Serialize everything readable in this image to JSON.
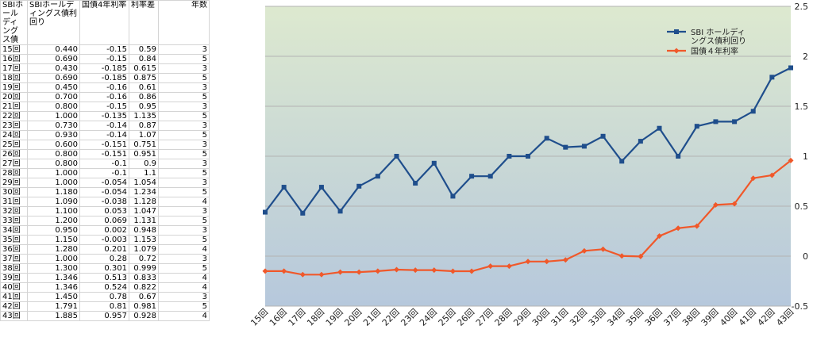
{
  "table": {
    "headers": [
      "SBIホールディングス債",
      "SBIホールディングス債利回り",
      "国債4年利率",
      "利率差",
      "年数"
    ],
    "rows": [
      [
        "15回",
        "0.440",
        "-0.15",
        "0.59",
        "3"
      ],
      [
        "16回",
        "0.690",
        "-0.15",
        "0.84",
        "5"
      ],
      [
        "17回",
        "0.430",
        "-0.185",
        "0.615",
        "3"
      ],
      [
        "18回",
        "0.690",
        "-0.185",
        "0.875",
        "5"
      ],
      [
        "19回",
        "0.450",
        "-0.16",
        "0.61",
        "3"
      ],
      [
        "20回",
        "0.700",
        "-0.16",
        "0.86",
        "5"
      ],
      [
        "21回",
        "0.800",
        "-0.15",
        "0.95",
        "3"
      ],
      [
        "22回",
        "1.000",
        "-0.135",
        "1.135",
        "5"
      ],
      [
        "23回",
        "0.730",
        "-0.14",
        "0.87",
        "3"
      ],
      [
        "24回",
        "0.930",
        "-0.14",
        "1.07",
        "5"
      ],
      [
        "25回",
        "0.600",
        "-0.151",
        "0.751",
        "3"
      ],
      [
        "26回",
        "0.800",
        "-0.151",
        "0.951",
        "5"
      ],
      [
        "27回",
        "0.800",
        "-0.1",
        "0.9",
        "3"
      ],
      [
        "28回",
        "1.000",
        "-0.1",
        "1.1",
        "5"
      ],
      [
        "29回",
        "1.000",
        "-0.054",
        "1.054",
        "3"
      ],
      [
        "30回",
        "1.180",
        "-0.054",
        "1.234",
        "5"
      ],
      [
        "31回",
        "1.090",
        "-0.038",
        "1.128",
        "4"
      ],
      [
        "32回",
        "1.100",
        "0.053",
        "1.047",
        "3"
      ],
      [
        "33回",
        "1.200",
        "0.069",
        "1.131",
        "5"
      ],
      [
        "34回",
        "0.950",
        "0.002",
        "0.948",
        "3"
      ],
      [
        "35回",
        "1.150",
        "-0.003",
        "1.153",
        "5"
      ],
      [
        "36回",
        "1.280",
        "0.201",
        "1.079",
        "4"
      ],
      [
        "37回",
        "1.000",
        "0.28",
        "0.72",
        "3"
      ],
      [
        "38回",
        "1.300",
        "0.301",
        "0.999",
        "5"
      ],
      [
        "39回",
        "1.346",
        "0.513",
        "0.833",
        "4"
      ],
      [
        "40回",
        "1.346",
        "0.524",
        "0.822",
        "4"
      ],
      [
        "41回",
        "1.450",
        "0.78",
        "0.67",
        "3"
      ],
      [
        "42回",
        "1.791",
        "0.81",
        "0.981",
        "5"
      ],
      [
        "43回",
        "1.885",
        "0.957",
        "0.928",
        "4"
      ]
    ]
  },
  "chart_data": {
    "type": "line",
    "categories": [
      "15回",
      "16回",
      "17回",
      "18回",
      "19回",
      "20回",
      "21回",
      "22回",
      "23回",
      "24回",
      "25回",
      "26回",
      "27回",
      "28回",
      "29回",
      "30回",
      "31回",
      "32回",
      "33回",
      "34回",
      "35回",
      "36回",
      "37回",
      "38回",
      "39回",
      "40回",
      "41回",
      "42回",
      "43回"
    ],
    "series": [
      {
        "name": "SBI ホールディングス債利回り",
        "color": "#1f4e8c",
        "marker": "square",
        "values": [
          0.44,
          0.69,
          0.43,
          0.69,
          0.45,
          0.7,
          0.8,
          1.0,
          0.73,
          0.93,
          0.6,
          0.8,
          0.8,
          1.0,
          1.0,
          1.18,
          1.09,
          1.1,
          1.2,
          0.95,
          1.15,
          1.28,
          1.0,
          1.3,
          1.346,
          1.346,
          1.45,
          1.791,
          1.885
        ]
      },
      {
        "name": "国債４年利率",
        "color": "#f0582a",
        "marker": "diamond",
        "values": [
          -0.15,
          -0.15,
          -0.185,
          -0.185,
          -0.16,
          -0.16,
          -0.15,
          -0.135,
          -0.14,
          -0.14,
          -0.151,
          -0.151,
          -0.1,
          -0.1,
          -0.054,
          -0.054,
          -0.038,
          0.053,
          0.069,
          0.002,
          -0.003,
          0.201,
          0.28,
          0.301,
          0.513,
          0.524,
          0.78,
          0.81,
          0.957
        ]
      }
    ],
    "ylim": [
      -0.5,
      2.5
    ],
    "yticks": [
      "-0.5",
      "0",
      "0.5",
      "1",
      "1.5",
      "2",
      "2.5"
    ],
    "grid": true,
    "legend_position": "top-right",
    "background_gradient": [
      "#dde9cf",
      "#b6c8dc"
    ]
  }
}
